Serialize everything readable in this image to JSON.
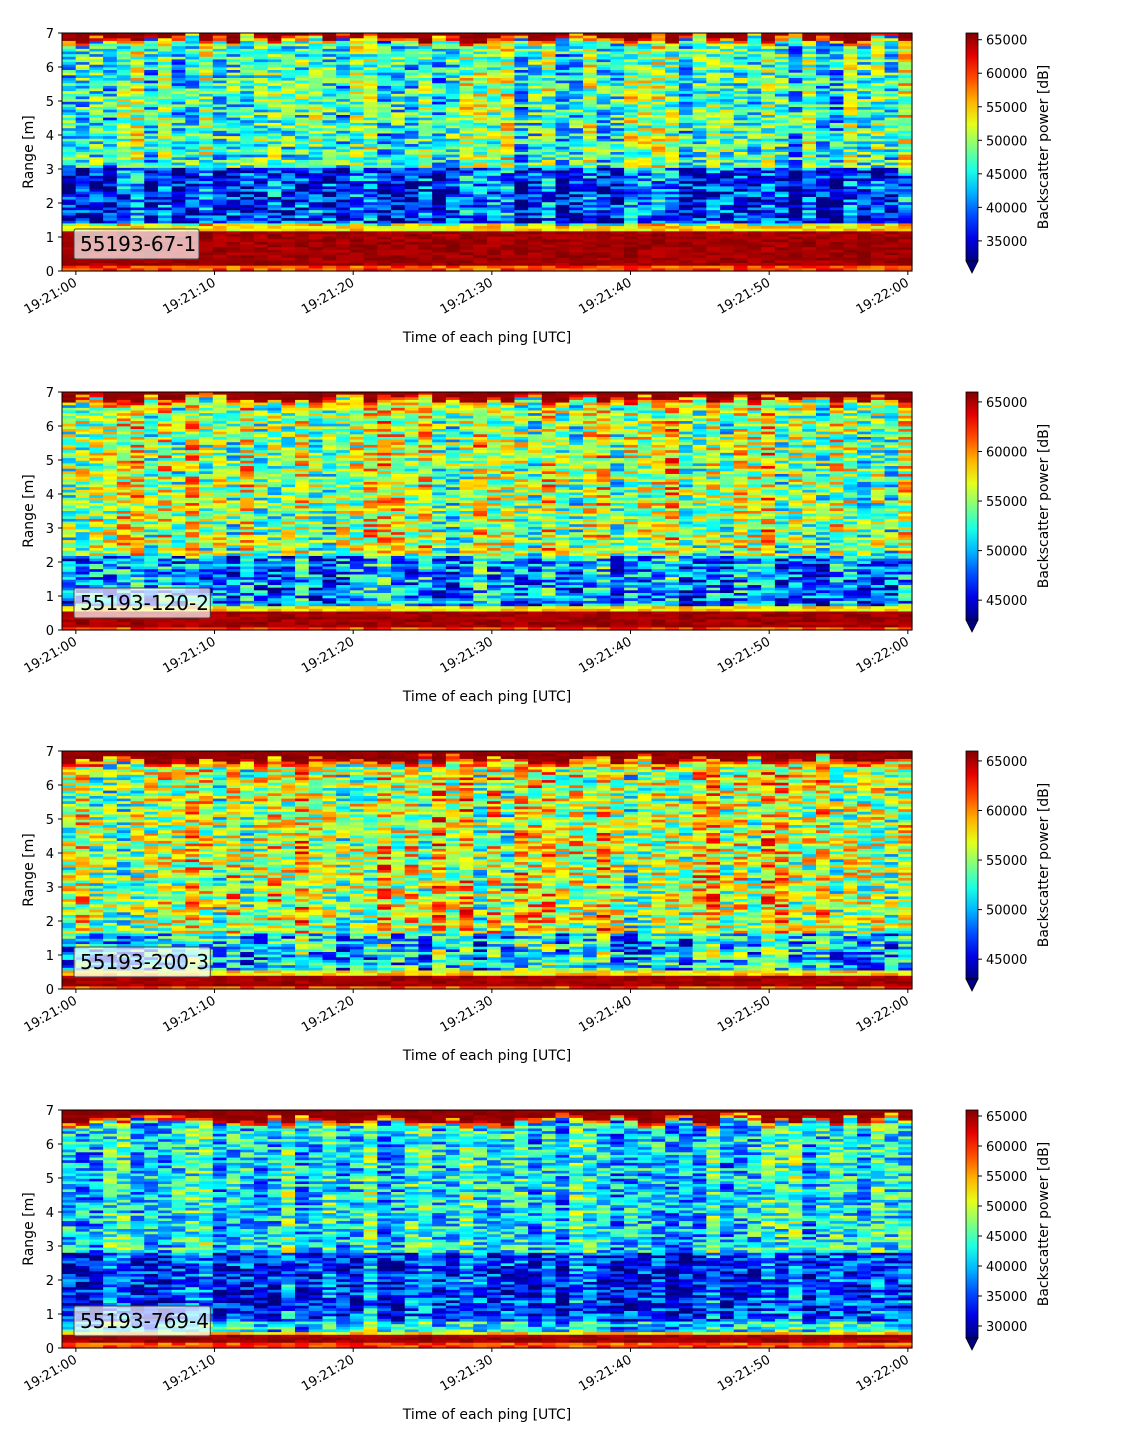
{
  "chart_data": [
    {
      "type": "heatmap",
      "tag": "55193-67-1",
      "xlabel": "Time of each ping [UTC]",
      "ylabel": "Range [m]",
      "x_ticks": [
        "19:21:00",
        "19:21:10",
        "19:21:20",
        "19:21:30",
        "19:21:40",
        "19:21:50",
        "19:22:00"
      ],
      "y_ticks": [
        0,
        1,
        2,
        3,
        4,
        5,
        6,
        7
      ],
      "xlim_seconds": [
        -1,
        60.3
      ],
      "ylim": [
        0,
        7
      ],
      "colorbar": {
        "label": "Backscatter power [dB]",
        "min": 32000,
        "max": 66000,
        "ticks": [
          35000,
          40000,
          45000,
          50000,
          55000,
          60000,
          65000
        ],
        "extend": "min"
      },
      "profile": {
        "band_top": 1.2,
        "band_bottom": 0.15,
        "top_start": 6.75,
        "low_zone": [
          1.4,
          3.0
        ],
        "mid": 0.45,
        "low": 0.18,
        "near_surface": 0.55,
        "noise": 0.22
      },
      "seed": 11
    },
    {
      "type": "heatmap",
      "tag": "55193-120-2",
      "xlabel": "Time of each ping [UTC]",
      "ylabel": "Range [m]",
      "x_ticks": [
        "19:21:00",
        "19:21:10",
        "19:21:20",
        "19:21:30",
        "19:21:40",
        "19:21:50",
        "19:22:00"
      ],
      "y_ticks": [
        0,
        1,
        2,
        3,
        4,
        5,
        6,
        7
      ],
      "xlim_seconds": [
        -1,
        60.3
      ],
      "ylim": [
        0,
        7
      ],
      "colorbar": {
        "label": "Backscatter power [dB]",
        "min": 43000,
        "max": 66000,
        "ticks": [
          45000,
          50000,
          55000,
          60000,
          65000
        ],
        "extend": "min"
      },
      "profile": {
        "band_top": 0.55,
        "band_bottom": 0.1,
        "top_start": 6.7,
        "low_zone": [
          0.6,
          2.2
        ],
        "mid": 0.55,
        "low": 0.28,
        "near_surface": 0.5,
        "noise": 0.24
      },
      "seed": 23
    },
    {
      "type": "heatmap",
      "tag": "55193-200-3",
      "xlabel": "Time of each ping [UTC]",
      "ylabel": "Range [m]",
      "x_ticks": [
        "19:21:00",
        "19:21:10",
        "19:21:20",
        "19:21:30",
        "19:21:40",
        "19:21:50",
        "19:22:00"
      ],
      "y_ticks": [
        0,
        1,
        2,
        3,
        4,
        5,
        6,
        7
      ],
      "xlim_seconds": [
        -1,
        60.3
      ],
      "ylim": [
        0,
        7
      ],
      "colorbar": {
        "label": "Backscatter power [dB]",
        "min": 43000,
        "max": 66000,
        "ticks": [
          45000,
          50000,
          55000,
          60000,
          65000
        ],
        "extend": "min"
      },
      "profile": {
        "band_top": 0.4,
        "band_bottom": 0.1,
        "top_start": 6.65,
        "low_zone": [
          0.5,
          1.6
        ],
        "mid": 0.58,
        "low": 0.35,
        "near_surface": 0.55,
        "noise": 0.25
      },
      "seed": 37
    },
    {
      "type": "heatmap",
      "tag": "55193-769-4",
      "xlabel": "Time of each ping [UTC]",
      "ylabel": "Range [m]",
      "x_ticks": [
        "19:21:00",
        "19:21:10",
        "19:21:20",
        "19:21:30",
        "19:21:40",
        "19:21:50",
        "19:22:00"
      ],
      "y_ticks": [
        0,
        1,
        2,
        3,
        4,
        5,
        6,
        7
      ],
      "xlim_seconds": [
        -1,
        60.3
      ],
      "ylim": [
        0,
        7
      ],
      "colorbar": {
        "label": "Backscatter power [dB]",
        "min": 28000,
        "max": 66000,
        "ticks": [
          30000,
          35000,
          40000,
          45000,
          50000,
          55000,
          60000,
          65000
        ],
        "extend": "min"
      },
      "profile": {
        "band_top": 0.38,
        "band_bottom": 0.12,
        "top_start": 6.6,
        "low_zone": [
          0.8,
          2.8
        ],
        "mid": 0.4,
        "low": 0.2,
        "near_surface": 0.4,
        "noise": 0.2
      },
      "seed": 53
    }
  ]
}
